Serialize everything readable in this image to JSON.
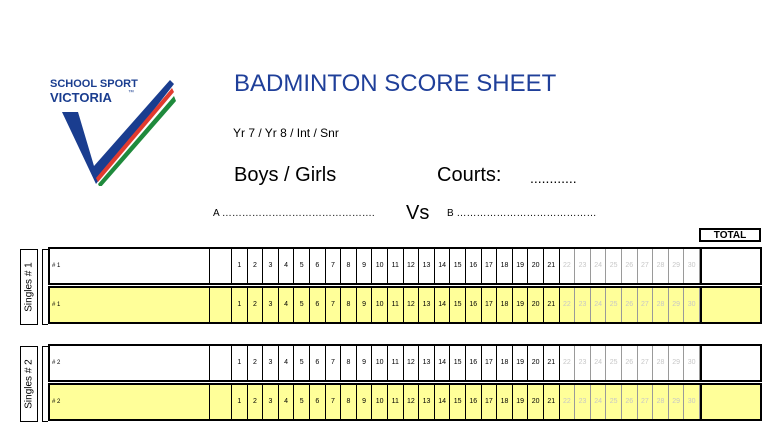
{
  "logo": {
    "line1": "SCHOOL SPORT",
    "line2": "VICTORIA",
    "tm": "™",
    "colors": {
      "navy": "#1a3d8f",
      "red": "#e23b2f",
      "green": "#1f8a3c"
    }
  },
  "title": "BADMINTON SCORE SHEET",
  "years": "Yr 7 / Yr 8 / Int / Snr",
  "gender": "Boys / Girls",
  "courts_label": "Courts:",
  "courts_value": "............",
  "team_a": "A ……………………………………….",
  "vs": "Vs",
  "team_b": "B ……………………………………",
  "total_header": "TOTAL",
  "scores": [
    "1",
    "2",
    "3",
    "4",
    "5",
    "6",
    "7",
    "8",
    "9",
    "10",
    "11",
    "12",
    "13",
    "14",
    "15",
    "16",
    "17",
    "18",
    "19",
    "20",
    "21",
    "22",
    "23",
    "24",
    "25",
    "26",
    "27",
    "28",
    "29",
    "30"
  ],
  "active_max": 21,
  "row_color": "#ffff99",
  "matches": [
    {
      "label": "Singles # 1",
      "players": [
        {
          "name": "# 1",
          "highlight": false
        },
        {
          "name": "# 1",
          "highlight": true
        }
      ]
    },
    {
      "label": "Singles # 2",
      "players": [
        {
          "name": "# 2",
          "highlight": false
        },
        {
          "name": "# 2",
          "highlight": true
        }
      ]
    }
  ]
}
